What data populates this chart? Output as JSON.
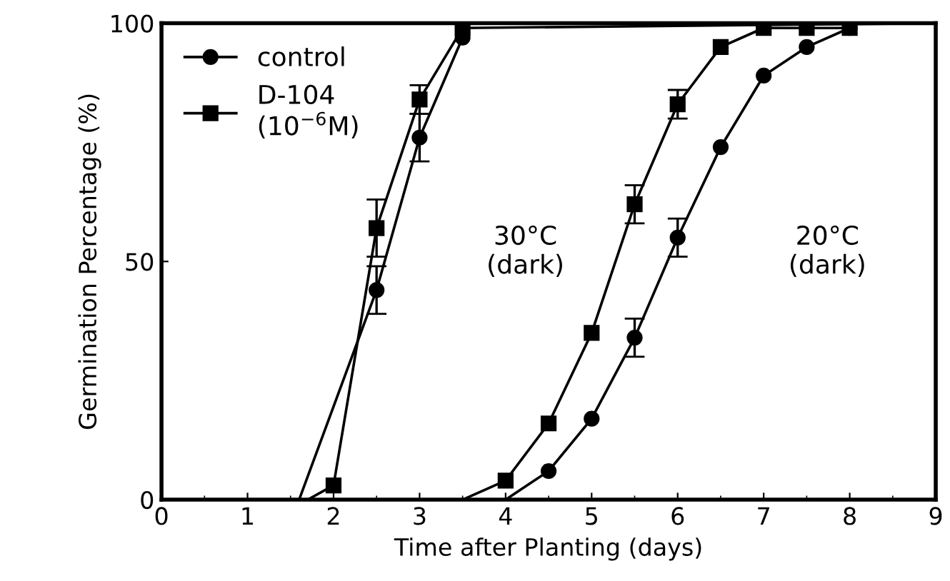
{
  "chart_data": {
    "type": "line",
    "xlabel": "Time after Planting (days)",
    "ylabel": "Germination Percentage (%)",
    "xlim": [
      0,
      9
    ],
    "xticks": [
      0,
      1,
      2,
      3,
      4,
      5,
      6,
      7,
      8,
      9
    ],
    "ylim": [
      0,
      100
    ],
    "yticks": [
      0,
      50,
      100
    ],
    "grid": false,
    "legend": "top left",
    "line_style": "solid",
    "annotations": [
      "30°C\n(dark)",
      "20°C\n(dark)"
    ],
    "series": [
      {
        "name": "control",
        "color": "#000000",
        "marker": "circle",
        "x": [
          2.5,
          3,
          3.5
        ],
        "values": [
          44,
          76,
          97
        ],
        "errors": [
          5,
          5,
          null
        ]
      },
      {
        "name": "D-104\n(10$^{−6}$M)",
        "color": "#000000",
        "marker": "square",
        "x": [
          2,
          2.5,
          3,
          3.5
        ],
        "values": [
          3,
          57,
          84,
          99
        ],
        "errors": [
          null,
          6,
          3,
          null
        ]
      },
      {
        "color": "#000000",
        "marker": "circle",
        "x": [
          4.5,
          5,
          5.5,
          6,
          6.5,
          7,
          7.5,
          8
        ],
        "values": [
          6,
          17,
          34,
          55,
          74,
          89,
          95,
          99
        ],
        "errors": [
          null,
          null,
          4,
          4,
          null,
          null,
          null,
          null
        ]
      },
      {
        "color": "#000000",
        "marker": "square",
        "x": [
          4,
          4.5,
          5,
          5.5,
          6,
          6.5,
          7,
          7.5,
          8
        ],
        "values": [
          4,
          16,
          35,
          62,
          83,
          95,
          99,
          99,
          99
        ],
        "errors": [
          null,
          null,
          null,
          4,
          3,
          null,
          null,
          null,
          null
        ]
      },
      {
        "color": "#000000",
        "marker": "none",
        "x": [
          1.6,
          2.5
        ],
        "values": [
          0,
          44
        ]
      },
      {
        "color": "#000000",
        "marker": "none",
        "x": [
          1.7,
          2
        ],
        "values": [
          0,
          3
        ]
      },
      {
        "color": "#000000",
        "marker": "none",
        "x": [
          3.5,
          9
        ],
        "values": [
          99,
          100
        ]
      },
      {
        "color": "#000000",
        "marker": "none",
        "x": [
          4,
          4.5
        ],
        "values": [
          0,
          6
        ]
      },
      {
        "color": "#000000",
        "marker": "none",
        "x": [
          3.5,
          4
        ],
        "values": [
          0,
          4
        ]
      }
    ]
  }
}
